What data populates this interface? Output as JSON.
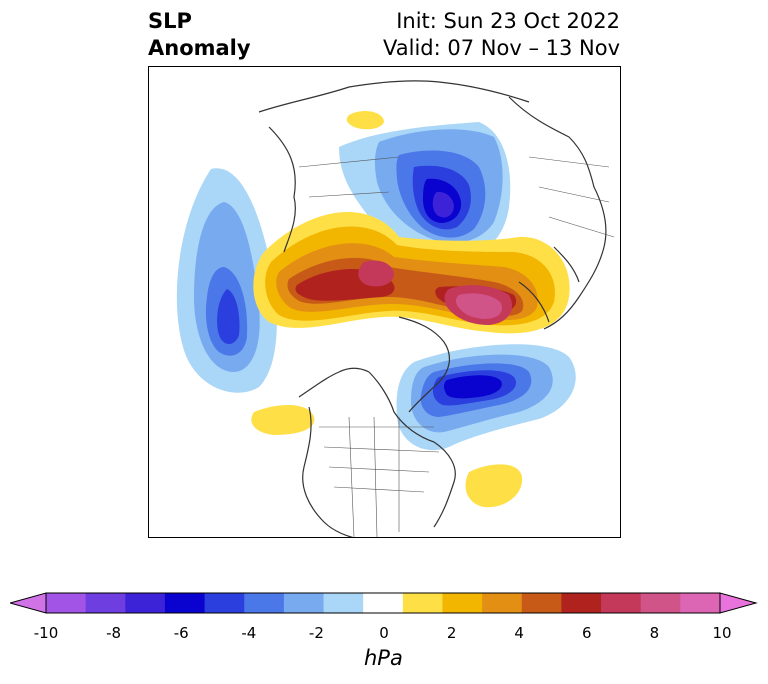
{
  "title": {
    "variable_line1": "SLP",
    "variable_line2": "Anomaly",
    "init": "Init: Sun 23 Oct 2022",
    "valid": "Valid: 07 Nov – 13 Nov"
  },
  "colorbar": {
    "unit": "hPa",
    "ticks": [
      "-10",
      "-8",
      "-6",
      "-4",
      "-2",
      "0",
      "2",
      "4",
      "6",
      "8",
      "10"
    ],
    "colors": [
      "#d073e6",
      "#a154e6",
      "#6e3ee0",
      "#3c23d8",
      "#0a02ce",
      "#2a3fdd",
      "#4b78e8",
      "#78aaf0",
      "#aad6f8",
      "#ffffff",
      "#ffdf46",
      "#f2b500",
      "#e28f13",
      "#c85a18",
      "#b0221e",
      "#c4385a",
      "#d05488",
      "#dc66b4",
      "#e873dc"
    ]
  },
  "anomalies": [
    {
      "name": "negative-anomaly-central-arctic",
      "level": "-6"
    },
    {
      "name": "negative-anomaly-north-pacific",
      "level": "-6"
    },
    {
      "name": "negative-anomaly-north-atlantic",
      "level": "-6"
    },
    {
      "name": "positive-anomaly-siberia",
      "level": "6"
    },
    {
      "name": "positive-anomaly-scandinavia",
      "level": "8"
    }
  ]
}
